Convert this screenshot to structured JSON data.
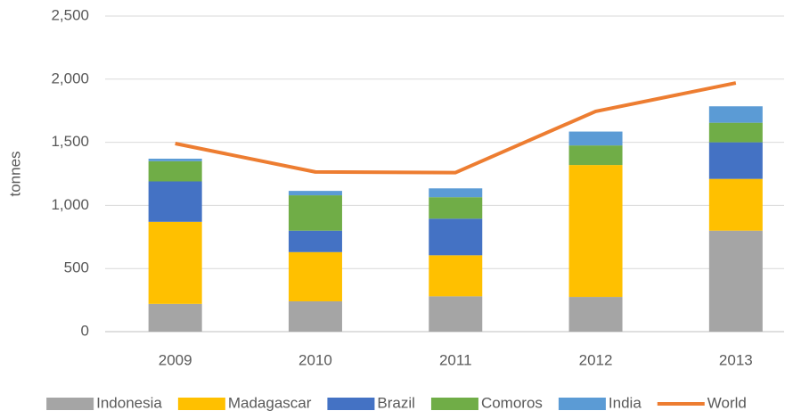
{
  "chart_data": {
    "type": "bar",
    "stacked": true,
    "y_label": "tonnes",
    "categories": [
      "2009",
      "2010",
      "2011",
      "2012",
      "2013"
    ],
    "series": [
      {
        "name": "Indonesia",
        "color": "#a5a5a5",
        "values": [
          220,
          240,
          280,
          275,
          800
        ]
      },
      {
        "name": "Madagascar",
        "color": "#ffc000",
        "values": [
          650,
          390,
          325,
          1045,
          410
        ]
      },
      {
        "name": "Brazil",
        "color": "#4472c4",
        "values": [
          320,
          170,
          290,
          0,
          290
        ]
      },
      {
        "name": "Comoros",
        "color": "#70ad47",
        "values": [
          160,
          280,
          170,
          155,
          155
        ]
      },
      {
        "name": "India",
        "color": "#5b9bd5",
        "values": [
          20,
          35,
          70,
          110,
          130
        ]
      },
      {
        "name": "World",
        "color": "#ed7d31",
        "type": "line",
        "values": [
          1490,
          1265,
          1260,
          1745,
          1970
        ]
      }
    ],
    "ylim": [
      0,
      2500
    ],
    "yticks": [
      0,
      500,
      {
        "value": 1000,
        "label": "1,000"
      },
      {
        "value": 1500,
        "label": "1,500"
      },
      {
        "value": 2000,
        "label": "2,000"
      },
      {
        "value": 2500,
        "label": "2,500"
      }
    ],
    "grid": true,
    "legend": "bottom"
  }
}
